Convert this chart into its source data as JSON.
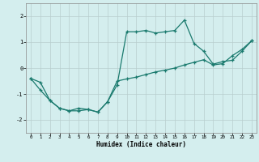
{
  "xlabel": "Humidex (Indice chaleur)",
  "xlim": [
    -0.5,
    23.5
  ],
  "ylim": [
    -2.5,
    2.5
  ],
  "xticks": [
    0,
    1,
    2,
    3,
    4,
    5,
    6,
    7,
    8,
    9,
    10,
    11,
    12,
    13,
    14,
    15,
    16,
    17,
    18,
    19,
    20,
    21,
    22,
    23
  ],
  "yticks": [
    -2,
    -1,
    0,
    1,
    2
  ],
  "background_color": "#d4eeee",
  "line_color": "#1a7a6e",
  "grid_color": "#b8cece",
  "line1_x": [
    0,
    1,
    2,
    3,
    4,
    5,
    6,
    7,
    8,
    9,
    10,
    11,
    12,
    13,
    14,
    15,
    16,
    17,
    18,
    19,
    20,
    21,
    22,
    23
  ],
  "line1_y": [
    -0.4,
    -0.85,
    -1.25,
    -1.55,
    -1.65,
    -1.65,
    -1.6,
    -1.7,
    -1.3,
    -0.65,
    1.4,
    1.4,
    1.45,
    1.35,
    1.4,
    1.45,
    1.85,
    0.95,
    0.65,
    0.15,
    0.25,
    0.3,
    0.65,
    1.05
  ],
  "line2_x": [
    0,
    1,
    2,
    3,
    4,
    5,
    6,
    7,
    8,
    9,
    10,
    11,
    12,
    13,
    14,
    15,
    16,
    17,
    18,
    19,
    20,
    21,
    22,
    23
  ],
  "line2_y": [
    -0.4,
    -0.55,
    -1.25,
    -1.55,
    -1.65,
    -1.55,
    -1.6,
    -1.7,
    -1.3,
    -0.5,
    -0.42,
    -0.35,
    -0.25,
    -0.15,
    -0.08,
    0.0,
    0.12,
    0.22,
    0.32,
    0.12,
    0.17,
    0.48,
    0.72,
    1.05
  ]
}
